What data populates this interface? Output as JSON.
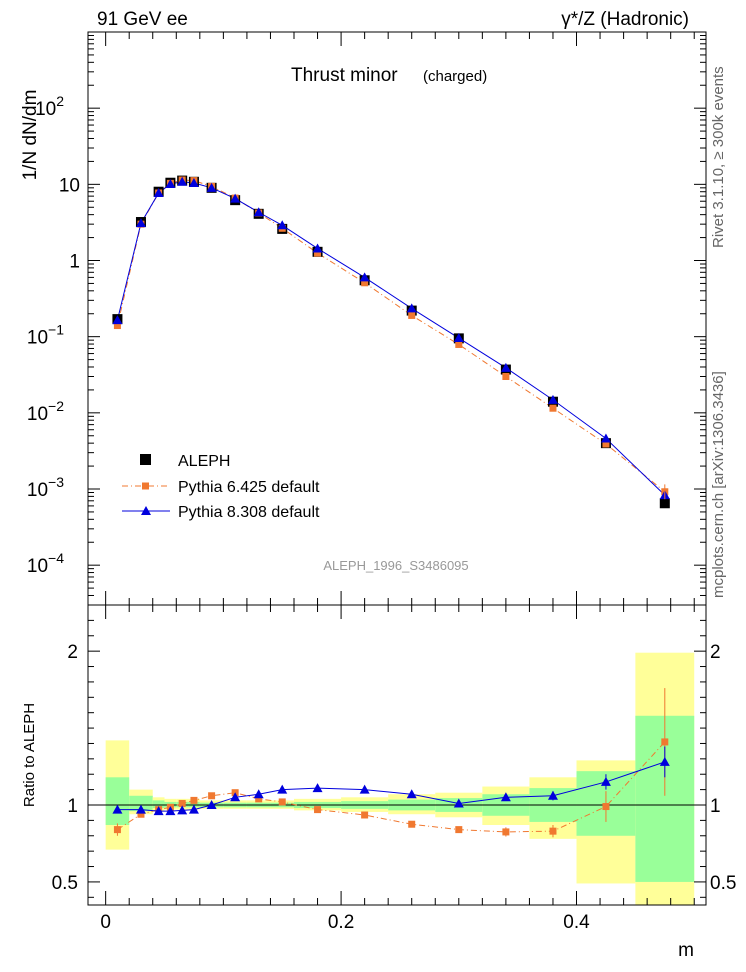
{
  "header": {
    "left": "91 GeV ee",
    "right": "γ*/Z (Hadronic)"
  },
  "side_labels": {
    "rivet": "Rivet 3.1.10, ≥ 300k events",
    "mcplots": "mcplots.cern.ch [arXiv:1306.3436]"
  },
  "chart_data": [
    {
      "type": "line",
      "title": "Thrust minor",
      "subtitle": "(charged)",
      "watermark": "ALEPH_1996_S3486095",
      "ylabel": "1/N dN/dm",
      "xlabel": "m",
      "xlim": [
        -0.015,
        0.51
      ],
      "ylim": [
        3e-05,
        1000
      ],
      "yscale": "log",
      "yticks": [
        "10^-4",
        "10^-3",
        "10^-2",
        "10^-1",
        "1",
        "10",
        "10^2"
      ],
      "xticks": [
        "0",
        "0.2",
        "0.4"
      ],
      "legend_position": "bottom-left",
      "x": [
        0.01,
        0.03,
        0.045,
        0.055,
        0.065,
        0.075,
        0.09,
        0.11,
        0.13,
        0.15,
        0.18,
        0.22,
        0.26,
        0.3,
        0.34,
        0.38,
        0.425,
        0.475
      ],
      "series": [
        {
          "name": "ALEPH",
          "marker": "square",
          "color": "#000000",
          "values": [
            0.17,
            3.2,
            8.0,
            10.5,
            11.2,
            10.8,
            9.0,
            6.2,
            4.1,
            2.6,
            1.3,
            0.55,
            0.22,
            0.095,
            0.037,
            0.014,
            0.004,
            0.00065
          ]
        },
        {
          "name": "Pythia 6.425 default",
          "marker": "square-small",
          "color": "#f07830",
          "dash": "dashdot",
          "values": [
            0.14,
            3.0,
            7.7,
            10.3,
            11.4,
            11.2,
            9.4,
            6.6,
            4.2,
            2.65,
            1.25,
            0.51,
            0.19,
            0.079,
            0.03,
            0.0115,
            0.0039,
            0.00092
          ]
        },
        {
          "name": "Pythia 8.308 default",
          "marker": "triangle",
          "color": "#0000dd",
          "values": [
            0.165,
            3.1,
            7.7,
            10.1,
            10.8,
            10.4,
            9.0,
            6.5,
            4.3,
            2.9,
            1.44,
            0.6,
            0.235,
            0.096,
            0.039,
            0.0148,
            0.0046,
            0.00083
          ]
        }
      ]
    },
    {
      "type": "line",
      "ylabel": "Ratio to ALEPH",
      "xlabel": "m",
      "xlim": [
        -0.015,
        0.51
      ],
      "ylim": [
        0.35,
        2.3
      ],
      "yticks": [
        "0.5",
        "1",
        "2"
      ],
      "reference": 1,
      "bins": [
        {
          "lo": 0.0,
          "hi": 0.02,
          "yellow": [
            0.71,
            1.42
          ],
          "green": [
            0.87,
            1.18
          ]
        },
        {
          "lo": 0.02,
          "hi": 0.04,
          "yellow": [
            0.94,
            1.1
          ],
          "green": [
            0.96,
            1.06
          ]
        },
        {
          "lo": 0.04,
          "hi": 0.05,
          "yellow": [
            0.96,
            1.05
          ],
          "green": [
            0.98,
            1.03
          ]
        },
        {
          "lo": 0.05,
          "hi": 0.06,
          "yellow": [
            0.97,
            1.04
          ],
          "green": [
            0.985,
            1.02
          ]
        },
        {
          "lo": 0.06,
          "hi": 0.07,
          "yellow": [
            0.97,
            1.04
          ],
          "green": [
            0.985,
            1.02
          ]
        },
        {
          "lo": 0.07,
          "hi": 0.08,
          "yellow": [
            0.97,
            1.04
          ],
          "green": [
            0.985,
            1.02
          ]
        },
        {
          "lo": 0.08,
          "hi": 0.1,
          "yellow": [
            0.975,
            1.03
          ],
          "green": [
            0.985,
            1.015
          ]
        },
        {
          "lo": 0.1,
          "hi": 0.12,
          "yellow": [
            0.975,
            1.03
          ],
          "green": [
            0.985,
            1.015
          ]
        },
        {
          "lo": 0.12,
          "hi": 0.14,
          "yellow": [
            0.975,
            1.03
          ],
          "green": [
            0.985,
            1.015
          ]
        },
        {
          "lo": 0.14,
          "hi": 0.16,
          "yellow": [
            0.975,
            1.03
          ],
          "green": [
            0.985,
            1.015
          ]
        },
        {
          "lo": 0.16,
          "hi": 0.2,
          "yellow": [
            0.965,
            1.04
          ],
          "green": [
            0.98,
            1.02
          ]
        },
        {
          "lo": 0.2,
          "hi": 0.24,
          "yellow": [
            0.955,
            1.05
          ],
          "green": [
            0.975,
            1.025
          ]
        },
        {
          "lo": 0.24,
          "hi": 0.28,
          "yellow": [
            0.94,
            1.07
          ],
          "green": [
            0.965,
            1.035
          ]
        },
        {
          "lo": 0.28,
          "hi": 0.32,
          "yellow": [
            0.92,
            1.08
          ],
          "green": [
            0.955,
            1.045
          ]
        },
        {
          "lo": 0.32,
          "hi": 0.36,
          "yellow": [
            0.87,
            1.12
          ],
          "green": [
            0.93,
            1.07
          ]
        },
        {
          "lo": 0.36,
          "hi": 0.4,
          "yellow": [
            0.78,
            1.18
          ],
          "green": [
            0.89,
            1.11
          ]
        },
        {
          "lo": 0.4,
          "hi": 0.45,
          "yellow": [
            0.49,
            1.29
          ],
          "green": [
            0.8,
            1.22
          ]
        },
        {
          "lo": 0.45,
          "hi": 0.5,
          "yellow": [
            0.35,
            1.99
          ],
          "green": [
            0.5,
            1.58
          ]
        }
      ],
      "series": [
        {
          "name": "Pythia 6.425 default",
          "color": "#f07830",
          "values": [
            0.84,
            0.94,
            0.97,
            0.985,
            1.01,
            1.03,
            1.06,
            1.08,
            1.04,
            1.02,
            0.97,
            0.935,
            0.875,
            0.84,
            0.825,
            0.83,
            0.99,
            1.41
          ],
          "errors": [
            0.04,
            0.02,
            0.01,
            0.01,
            0.01,
            0.01,
            0.01,
            0.01,
            0.01,
            0.01,
            0.01,
            0.01,
            0.015,
            0.02,
            0.03,
            0.04,
            0.1,
            0.35
          ]
        },
        {
          "name": "Pythia 8.308 default",
          "color": "#0000dd",
          "values": [
            0.97,
            0.97,
            0.96,
            0.96,
            0.965,
            0.97,
            1.0,
            1.05,
            1.07,
            1.1,
            1.11,
            1.1,
            1.07,
            1.01,
            1.05,
            1.06,
            1.15,
            1.28
          ],
          "errors": [
            0.02,
            0.01,
            0.01,
            0.01,
            0.01,
            0.01,
            0.01,
            0.01,
            0.01,
            0.01,
            0.01,
            0.01,
            0.015,
            0.02,
            0.02,
            0.03,
            0.05,
            0.1
          ]
        }
      ]
    }
  ]
}
